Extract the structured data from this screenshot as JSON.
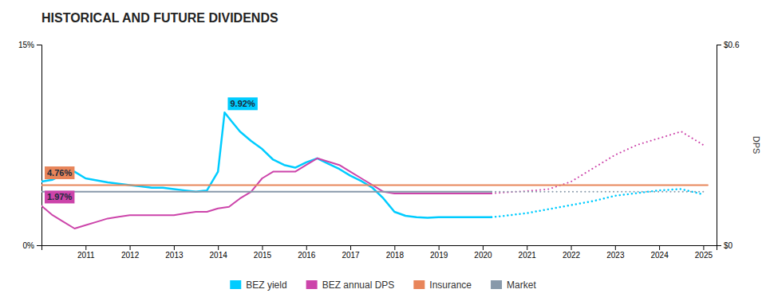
{
  "chart_data": {
    "type": "line",
    "title": "HISTORICAL AND FUTURE DIVIDENDS",
    "xlim": [
      2010.0,
      2025.3
    ],
    "xticks": [
      2011,
      2012,
      2013,
      2014,
      2015,
      2016,
      2017,
      2018,
      2019,
      2020,
      2021,
      2022,
      2023,
      2024,
      2025
    ],
    "ylim": [
      0,
      15
    ],
    "yticks": [
      {
        "value": 0,
        "label": "0%"
      },
      {
        "value": 15,
        "label": "15%"
      }
    ],
    "y2lim": [
      0,
      0.6
    ],
    "y2ticks": [
      {
        "value": 0,
        "label": "$0"
      },
      {
        "value": 0.6,
        "label": "$0.6"
      }
    ],
    "y2label": "DPS",
    "grid": false,
    "legend": "bottom",
    "series": [
      {
        "name": "BEZ yield",
        "color": "#00ccff",
        "line_style": "solid",
        "x": [
          2010.0,
          2010.25,
          2010.5,
          2010.75,
          2011.0,
          2011.25,
          2011.5,
          2011.75,
          2012.0,
          2012.25,
          2012.5,
          2012.75,
          2013.0,
          2013.25,
          2013.5,
          2013.75,
          2014.0,
          2014.15,
          2014.3,
          2014.5,
          2014.75,
          2015.0,
          2015.25,
          2015.5,
          2015.75,
          2016.0,
          2016.25,
          2016.5,
          2016.75,
          2017.0,
          2017.25,
          2017.5,
          2017.75,
          2018.0,
          2018.25,
          2018.5,
          2018.75,
          2019.0,
          2019.25,
          2019.5,
          2019.75,
          2020.0,
          2020.2
        ],
        "values": [
          4.76,
          4.9,
          5.3,
          5.5,
          5.0,
          4.85,
          4.7,
          4.6,
          4.5,
          4.4,
          4.3,
          4.3,
          4.2,
          4.1,
          4.0,
          4.1,
          5.5,
          9.92,
          9.3,
          8.5,
          7.8,
          7.2,
          6.4,
          6.0,
          5.8,
          6.2,
          6.5,
          6.1,
          5.7,
          5.2,
          4.8,
          4.3,
          3.5,
          2.5,
          2.2,
          2.1,
          2.05,
          2.1,
          2.1,
          2.1,
          2.1,
          2.1,
          2.1
        ]
      },
      {
        "color": "#00ccff",
        "line_style": "dotted",
        "x": [
          2020.2,
          2020.5,
          2021.0,
          2021.5,
          2022.0,
          2022.5,
          2023.0,
          2023.5,
          2024.0,
          2024.5,
          2025.0
        ],
        "values": [
          2.1,
          2.2,
          2.4,
          2.7,
          3.0,
          3.3,
          3.7,
          3.9,
          4.1,
          4.2,
          3.8
        ]
      },
      {
        "name": "BEZ annual DPS",
        "color": "#cc44aa",
        "line_style": "solid",
        "axis": "y2",
        "x": [
          2010.0,
          2010.25,
          2010.5,
          2010.75,
          2011.0,
          2011.25,
          2011.5,
          2011.75,
          2012.0,
          2012.25,
          2012.5,
          2012.75,
          2013.0,
          2013.25,
          2013.5,
          2013.75,
          2014.0,
          2014.25,
          2014.5,
          2014.75,
          2015.0,
          2015.25,
          2015.5,
          2015.75,
          2016.0,
          2016.25,
          2016.5,
          2016.75,
          2017.0,
          2017.25,
          2017.5,
          2017.75,
          2018.0,
          2018.25,
          2018.5,
          2018.75,
          2019.0,
          2019.25,
          2019.5,
          2019.75,
          2020.0,
          2020.2
        ],
        "values": [
          0.118,
          0.09,
          0.07,
          0.05,
          0.06,
          0.07,
          0.08,
          0.085,
          0.09,
          0.09,
          0.09,
          0.09,
          0.09,
          0.095,
          0.1,
          0.1,
          0.11,
          0.115,
          0.14,
          0.16,
          0.2,
          0.22,
          0.22,
          0.22,
          0.24,
          0.26,
          0.25,
          0.24,
          0.22,
          0.2,
          0.18,
          0.16,
          0.155,
          0.155,
          0.155,
          0.155,
          0.155,
          0.155,
          0.155,
          0.155,
          0.155,
          0.155
        ]
      },
      {
        "color": "#cc44aa",
        "line_style": "dotted",
        "axis": "y2",
        "x": [
          2020.2,
          2020.5,
          2021.0,
          2021.5,
          2022.0,
          2022.5,
          2023.0,
          2023.5,
          2024.0,
          2024.5,
          2025.0
        ],
        "values": [
          0.155,
          0.158,
          0.162,
          0.168,
          0.19,
          0.23,
          0.27,
          0.3,
          0.32,
          0.34,
          0.3
        ]
      },
      {
        "name": "Insurance",
        "color": "#e8855a",
        "line_style": "solid",
        "axis": "y2",
        "x": [
          2010.0,
          2025.1
        ],
        "values": [
          0.18,
          0.18
        ]
      },
      {
        "name": "Market",
        "color": "#8899aa",
        "line_style": "solid",
        "axis": "y2",
        "x": [
          2010.0,
          2020.2
        ],
        "values": [
          0.16,
          0.16
        ]
      },
      {
        "color": "#8899aa",
        "line_style": "dotted",
        "axis": "y2",
        "x": [
          2020.2,
          2020.5,
          2021.0,
          2021.5,
          2022.0,
          2022.5,
          2023.0,
          2023.5,
          2024.0,
          2024.5,
          2025.0
        ],
        "values": [
          0.16,
          0.16,
          0.16,
          0.16,
          0.16,
          0.16,
          0.16,
          0.16,
          0.16,
          0.16,
          0.16
        ]
      }
    ],
    "annotations": [
      {
        "text": "9.92%",
        "x": 2014.15,
        "y": 9.92,
        "color": "#00ccff"
      },
      {
        "text": "4.76%",
        "x": 2010.0,
        "y": 4.76,
        "color": "#e8855a"
      },
      {
        "text": "1.97%",
        "x": 2010.0,
        "y": 0.118,
        "axis": "y2",
        "color": "#cc44aa"
      }
    ]
  }
}
